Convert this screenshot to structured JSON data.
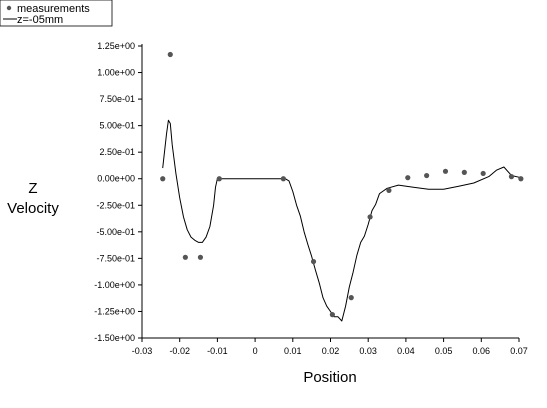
{
  "chart_data": {
    "type": "scatter",
    "xlabel": "Position",
    "ylabel_lines": [
      "Z",
      "Velocity"
    ],
    "xlim": [
      -0.03,
      0.07
    ],
    "ylim": [
      -1.5,
      1.25
    ],
    "x_ticks": [
      -0.03,
      -0.02,
      -0.01,
      0,
      0.01,
      0.02,
      0.03,
      0.04,
      0.05,
      0.06,
      0.07
    ],
    "x_tick_labels": [
      "-0.03",
      "-0.02",
      "-0.01",
      "0",
      "0.01",
      "0.02",
      "0.03",
      "0.04",
      "0.05",
      "0.06",
      "0.07"
    ],
    "y_ticks": [
      1.25,
      1.0,
      0.75,
      0.5,
      0.25,
      0.0,
      -0.25,
      -0.5,
      -0.75,
      -1.0,
      -1.25,
      -1.5
    ],
    "y_tick_labels": [
      "1.25e+00",
      "1.00e+00",
      "7.50e-01",
      "5.00e-01",
      "2.50e-01",
      "0.00e+00",
      "-2.50e-01",
      "-5.00e-01",
      "-7.50e-01",
      "-1.00e+00",
      "-1.25e+00",
      "-1.50e+00"
    ],
    "grid": false,
    "legend_position": "top-left",
    "series": [
      {
        "name": "measurements",
        "kind": "points",
        "color": "#555555",
        "x": [
          -0.0245,
          -0.0225,
          -0.0185,
          -0.0145,
          -0.0095,
          0.0075,
          0.0155,
          0.0205,
          0.0255,
          0.0305,
          0.0355,
          0.0405,
          0.0455,
          0.0505,
          0.0555,
          0.0605,
          0.068,
          0.0705
        ],
        "y": [
          0.0,
          1.17,
          -0.74,
          -0.74,
          0.0,
          0.0,
          -0.78,
          -1.28,
          -1.12,
          -0.36,
          -0.11,
          0.01,
          0.03,
          0.07,
          0.06,
          0.05,
          0.02,
          0.0
        ]
      },
      {
        "name": "z=-05mm",
        "kind": "line",
        "color": "#000000",
        "x": [
          -0.0245,
          -0.0235,
          -0.023,
          -0.0225,
          -0.022,
          -0.021,
          -0.02,
          -0.019,
          -0.018,
          -0.017,
          -0.016,
          -0.015,
          -0.014,
          -0.013,
          -0.012,
          -0.011,
          -0.0105,
          -0.01,
          0.0,
          0.008,
          0.009,
          0.01,
          0.011,
          0.012,
          0.013,
          0.014,
          0.015,
          0.016,
          0.017,
          0.018,
          0.019,
          0.02,
          0.021,
          0.022,
          0.023,
          0.024,
          0.025,
          0.026,
          0.027,
          0.028,
          0.029,
          0.03,
          0.031,
          0.032,
          0.033,
          0.035,
          0.038,
          0.042,
          0.046,
          0.05,
          0.054,
          0.058,
          0.062,
          0.064,
          0.066,
          0.068,
          0.0705
        ],
        "y": [
          0.1,
          0.42,
          0.55,
          0.52,
          0.32,
          0.05,
          -0.18,
          -0.36,
          -0.48,
          -0.55,
          -0.58,
          -0.6,
          -0.6,
          -0.55,
          -0.45,
          -0.25,
          -0.08,
          0.0,
          0.0,
          0.0,
          -0.02,
          -0.12,
          -0.25,
          -0.35,
          -0.5,
          -0.62,
          -0.73,
          -0.86,
          -0.98,
          -1.12,
          -1.2,
          -1.25,
          -1.3,
          -1.3,
          -1.34,
          -1.2,
          -1.02,
          -0.88,
          -0.72,
          -0.6,
          -0.54,
          -0.43,
          -0.3,
          -0.24,
          -0.14,
          -0.09,
          -0.06,
          -0.08,
          -0.1,
          -0.1,
          -0.07,
          -0.04,
          0.02,
          0.08,
          0.11,
          0.03,
          0.01
        ]
      }
    ]
  },
  "legend": {
    "items": [
      {
        "label": "measurements",
        "marker": "dot"
      },
      {
        "label": "z=-05mm",
        "marker": "line"
      }
    ]
  }
}
